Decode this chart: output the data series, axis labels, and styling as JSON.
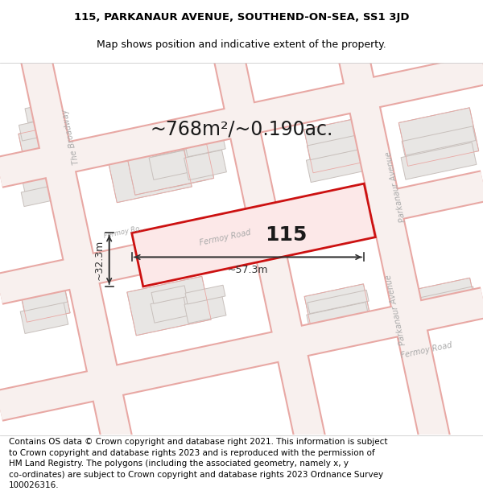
{
  "title_line1": "115, PARKANAUR AVENUE, SOUTHEND-ON-SEA, SS1 3JD",
  "title_line2": "Map shows position and indicative extent of the property.",
  "footer_text": "Contains OS data © Crown copyright and database right 2021. This information is subject\nto Crown copyright and database rights 2023 and is reproduced with the permission of\nHM Land Registry. The polygons (including the associated geometry, namely x, y\nco-ordinates) are subject to Crown copyright and database rights 2023 Ordnance Survey\n100026316.",
  "area_text": "~768m²/~0.190ac.",
  "width_label": "~57.3m",
  "height_label": "~32.3m",
  "property_number": "115",
  "map_bg": "#f8f6f4",
  "building_fill": "#e8e6e4",
  "building_edge_main": "#c8c0bc",
  "building_edge_pink": "#e8a8a4",
  "highlight_fill": "#fce8e8",
  "highlight_edge": "#cc1111",
  "highlight_lw": 2.0,
  "road_outline_color": "#e8a8a4",
  "road_center_color": "#f8f0ee",
  "road_label_color": "#aaaaaa",
  "dim_color": "#333333",
  "title_fontsize": 9.5,
  "footer_fontsize": 7.5,
  "area_fontsize": 17,
  "prop_num_fontsize": 18,
  "dim_fontsize": 9,
  "road_fontsize": 7
}
